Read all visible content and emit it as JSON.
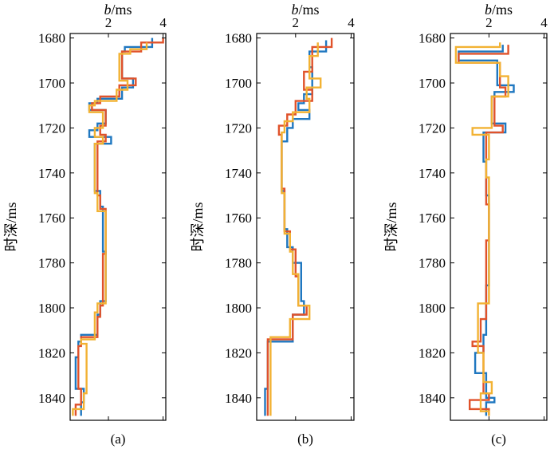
{
  "figure": {
    "x_unit_title": "b/ms",
    "y_axis_title": "时深/ms"
  },
  "colors": {
    "blue": "#1f77c0",
    "red": "#e0522a",
    "yellow": "#f2b233"
  },
  "chart_data": [
    {
      "type": "line",
      "panel_label": "(a)",
      "xlabel": "b/ms",
      "ylabel": "时深/ms",
      "xlim": [
        0.6,
        4.1
      ],
      "ylim": [
        1850,
        1678
      ],
      "xticks": [
        2,
        4
      ],
      "yticks": [
        1680,
        1700,
        1720,
        1740,
        1760,
        1780,
        1800,
        1820,
        1840
      ],
      "series": [
        {
          "name": "blue",
          "color": "#1f77c0",
          "depth": [
            1680,
            1684,
            1684,
            1686,
            1686,
            1698,
            1698,
            1702,
            1702,
            1707,
            1707,
            1709,
            1709,
            1712,
            1712,
            1718,
            1718,
            1721,
            1721,
            1724,
            1724,
            1727,
            1727,
            1748,
            1748,
            1755,
            1755,
            1775,
            1775,
            1797,
            1797,
            1803,
            1803,
            1812,
            1812,
            1815,
            1815,
            1822,
            1822,
            1836,
            1836,
            1842,
            1842,
            1848
          ],
          "b": [
            3.6,
            3.6,
            2.6,
            2.6,
            2.5,
            2.5,
            2.9,
            2.9,
            2.5,
            2.5,
            1.6,
            1.6,
            1.3,
            1.3,
            1.9,
            1.9,
            1.6,
            1.6,
            1.3,
            1.3,
            2.1,
            2.1,
            1.5,
            1.5,
            1.7,
            1.7,
            1.8,
            1.8,
            1.9,
            1.9,
            1.7,
            1.7,
            1.6,
            1.6,
            1.0,
            1.0,
            0.9,
            0.9,
            0.8,
            0.8,
            1.1,
            1.1,
            1.0,
            1.0
          ]
        },
        {
          "name": "red",
          "color": "#e0522a",
          "depth": [
            1680,
            1682,
            1682,
            1686,
            1686,
            1698,
            1698,
            1701,
            1701,
            1706,
            1706,
            1709,
            1709,
            1712,
            1712,
            1719,
            1719,
            1723,
            1723,
            1726,
            1726,
            1750,
            1750,
            1756,
            1756,
            1776,
            1776,
            1799,
            1799,
            1804,
            1804,
            1813,
            1813,
            1817,
            1817,
            1836,
            1836,
            1843,
            1843,
            1848
          ],
          "b": [
            4.0,
            4.0,
            3.2,
            3.2,
            2.5,
            2.5,
            3.0,
            3.0,
            2.4,
            2.4,
            1.7,
            1.7,
            1.4,
            1.4,
            1.9,
            1.9,
            1.7,
            1.7,
            1.9,
            1.9,
            1.6,
            1.6,
            1.7,
            1.7,
            1.9,
            1.9,
            1.8,
            1.8,
            1.7,
            1.7,
            1.6,
            1.6,
            1.0,
            1.0,
            0.9,
            0.9,
            1.0,
            1.0,
            0.8,
            0.8
          ]
        },
        {
          "name": "yellow",
          "color": "#f2b233",
          "depth": [
            1682,
            1685,
            1685,
            1687,
            1687,
            1699,
            1699,
            1703,
            1703,
            1708,
            1708,
            1710,
            1710,
            1713,
            1713,
            1720,
            1720,
            1724,
            1724,
            1727,
            1727,
            1749,
            1749,
            1757,
            1757,
            1775,
            1775,
            1798,
            1798,
            1802,
            1802,
            1814,
            1814,
            1816,
            1816,
            1838,
            1838,
            1845,
            1845,
            1848
          ],
          "b": [
            3.4,
            3.4,
            2.8,
            2.8,
            2.4,
            2.4,
            2.7,
            2.7,
            2.3,
            2.3,
            1.5,
            1.5,
            1.3,
            1.3,
            1.8,
            1.8,
            1.5,
            1.5,
            1.8,
            1.8,
            1.5,
            1.5,
            1.6,
            1.6,
            1.9,
            1.9,
            1.9,
            1.9,
            1.6,
            1.6,
            1.5,
            1.5,
            1.0,
            1.0,
            1.2,
            1.2,
            1.1,
            1.1,
            0.7,
            0.7
          ]
        }
      ]
    },
    {
      "type": "line",
      "panel_label": "(b)",
      "xlabel": "b/ms",
      "ylabel": "时深/ms",
      "xlim": [
        0.6,
        4.1
      ],
      "ylim": [
        1850,
        1678
      ],
      "xticks": [
        2,
        4
      ],
      "yticks": [
        1680,
        1700,
        1720,
        1740,
        1760,
        1780,
        1800,
        1820,
        1840
      ],
      "series": [
        {
          "name": "blue",
          "color": "#1f77c0",
          "depth": [
            1681,
            1686,
            1686,
            1693,
            1693,
            1705,
            1705,
            1709,
            1709,
            1712,
            1712,
            1716,
            1716,
            1720,
            1720,
            1726,
            1726,
            1748,
            1748,
            1765,
            1765,
            1773,
            1773,
            1780,
            1780,
            1797,
            1797,
            1803,
            1803,
            1815,
            1815,
            1836,
            1836,
            1848
          ],
          "b": [
            3.1,
            3.1,
            2.5,
            2.5,
            2.6,
            2.6,
            2.3,
            2.3,
            2.1,
            2.1,
            2.5,
            2.5,
            1.9,
            1.9,
            1.7,
            1.7,
            1.5,
            1.5,
            1.6,
            1.6,
            1.7,
            1.7,
            1.9,
            1.9,
            2.2,
            2.2,
            2.3,
            2.3,
            1.9,
            1.9,
            1.0,
            1.0,
            0.9,
            0.9
          ]
        },
        {
          "name": "red",
          "color": "#e0522a",
          "depth": [
            1680,
            1684,
            1684,
            1695,
            1695,
            1703,
            1703,
            1708,
            1708,
            1714,
            1714,
            1719,
            1719,
            1723,
            1723,
            1747,
            1747,
            1766,
            1766,
            1774,
            1774,
            1786,
            1786,
            1799,
            1799,
            1803,
            1803,
            1814,
            1814,
            1848
          ],
          "b": [
            3.3,
            3.3,
            2.6,
            2.6,
            2.3,
            2.3,
            2.6,
            2.6,
            2.0,
            2.0,
            1.7,
            1.7,
            1.4,
            1.4,
            1.5,
            1.5,
            1.6,
            1.6,
            1.8,
            1.8,
            2.0,
            2.0,
            2.1,
            2.1,
            2.4,
            2.4,
            1.9,
            1.9,
            1.0,
            1.0
          ]
        },
        {
          "name": "yellow",
          "color": "#f2b233",
          "depth": [
            1682,
            1688,
            1688,
            1698,
            1698,
            1702,
            1702,
            1707,
            1707,
            1713,
            1713,
            1717,
            1717,
            1722,
            1722,
            1749,
            1749,
            1767,
            1767,
            1775,
            1775,
            1785,
            1785,
            1799,
            1799,
            1805,
            1805,
            1813,
            1813,
            1848
          ],
          "b": [
            2.8,
            2.8,
            2.5,
            2.5,
            2.9,
            2.9,
            2.4,
            2.4,
            2.5,
            2.5,
            1.9,
            1.9,
            1.6,
            1.6,
            1.5,
            1.5,
            1.6,
            1.6,
            1.8,
            1.8,
            1.9,
            1.9,
            2.1,
            2.1,
            2.5,
            2.5,
            1.8,
            1.8,
            1.1,
            1.1
          ]
        }
      ]
    },
    {
      "type": "line",
      "panel_label": "(c)",
      "xlabel": "b/ms",
      "ylabel": "时深/ms",
      "xlim": [
        0.6,
        4.1
      ],
      "ylim": [
        1850,
        1678
      ],
      "xticks": [
        2,
        4
      ],
      "yticks": [
        1680,
        1700,
        1720,
        1740,
        1760,
        1780,
        1800,
        1820,
        1840
      ],
      "series": [
        {
          "name": "blue",
          "color": "#1f77c0",
          "depth": [
            1683,
            1686,
            1686,
            1690,
            1690,
            1701,
            1701,
            1704,
            1704,
            1706,
            1706,
            1718,
            1718,
            1722,
            1722,
            1725,
            1725,
            1735,
            1735,
            1750,
            1750,
            1760,
            1760,
            1790,
            1790,
            1812,
            1812,
            1820,
            1820,
            1829,
            1829,
            1840,
            1840,
            1842,
            1842,
            1848
          ],
          "b": [
            2.5,
            2.5,
            0.9,
            0.9,
            2.3,
            2.3,
            2.9,
            2.9,
            2.2,
            2.2,
            2.1,
            2.1,
            2.6,
            2.6,
            1.8,
            1.8,
            1.8,
            1.8,
            1.9,
            1.9,
            2.0,
            2.0,
            2.0,
            2.0,
            1.9,
            1.9,
            1.8,
            1.8,
            1.5,
            1.5,
            1.9,
            1.9,
            2.2,
            2.2,
            1.9,
            1.9
          ]
        },
        {
          "name": "red",
          "color": "#e0522a",
          "depth": [
            1683,
            1687,
            1687,
            1691,
            1691,
            1702,
            1702,
            1706,
            1706,
            1719,
            1719,
            1722,
            1722,
            1726,
            1726,
            1754,
            1754,
            1770,
            1770,
            1805,
            1805,
            1815,
            1815,
            1817,
            1817,
            1838,
            1838,
            1841,
            1841,
            1845,
            1845,
            1848
          ],
          "b": [
            2.7,
            2.7,
            0.9,
            0.9,
            2.4,
            2.4,
            2.6,
            2.6,
            2.2,
            2.2,
            2.5,
            2.5,
            1.9,
            1.9,
            1.9,
            1.9,
            2.0,
            2.0,
            1.9,
            1.9,
            1.7,
            1.7,
            1.4,
            1.4,
            1.8,
            1.8,
            2.0,
            2.0,
            1.3,
            1.3,
            2.0,
            2.0
          ]
        },
        {
          "name": "yellow",
          "color": "#f2b233",
          "depth": [
            1682,
            1684,
            1684,
            1691,
            1691,
            1697,
            1697,
            1706,
            1706,
            1720,
            1720,
            1723,
            1723,
            1734,
            1734,
            1742,
            1742,
            1758,
            1758,
            1798,
            1798,
            1820,
            1820,
            1833,
            1833,
            1838,
            1838,
            1846,
            1846,
            1848
          ],
          "b": [
            2.4,
            2.4,
            0.8,
            0.8,
            2.4,
            2.4,
            2.7,
            2.7,
            2.1,
            2.1,
            1.4,
            1.4,
            2.0,
            2.0,
            1.9,
            1.9,
            2.0,
            2.0,
            2.0,
            2.0,
            1.6,
            1.6,
            1.8,
            1.8,
            2.1,
            2.1,
            1.7,
            1.7,
            2.0,
            2.0
          ]
        }
      ]
    }
  ]
}
